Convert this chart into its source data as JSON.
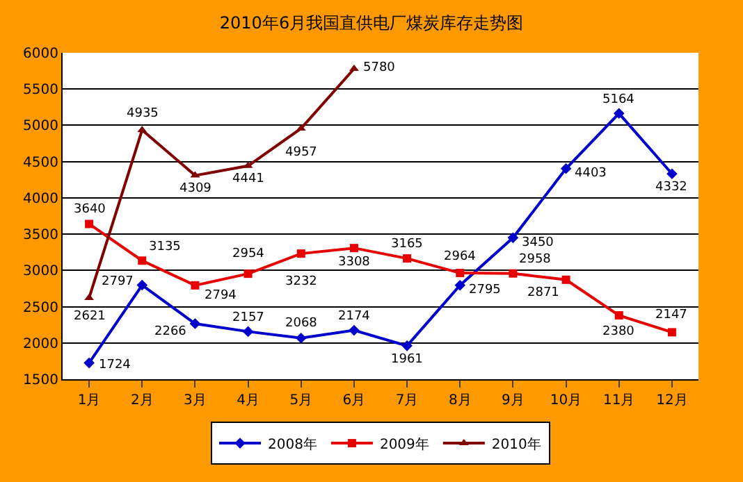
{
  "chart_data": {
    "type": "line",
    "title": "2010年6月我国直供电厂煤炭库存走势图",
    "categories": [
      "1月",
      "2月",
      "3月",
      "4月",
      "5月",
      "6月",
      "7月",
      "8月",
      "9月",
      "10月",
      "11月",
      "12月"
    ],
    "series": [
      {
        "name": "2008年",
        "color": "#0000cc",
        "marker": "diamond",
        "values": [
          1724,
          2797,
          2266,
          2157,
          2068,
          2174,
          1961,
          2795,
          3450,
          4403,
          5164,
          4332
        ]
      },
      {
        "name": "2009年",
        "color": "#e60000",
        "marker": "square",
        "values": [
          3640,
          3135,
          2794,
          2954,
          3232,
          3308,
          3165,
          2964,
          2958,
          2871,
          2380,
          2147
        ]
      },
      {
        "name": "2010年",
        "color": "#800000",
        "marker": "triangle",
        "values": [
          2621,
          4935,
          4309,
          4441,
          4957,
          5780,
          null,
          null,
          null,
          null,
          null,
          null
        ]
      }
    ],
    "ylim": [
      1500,
      6000
    ],
    "yticks": [
      1500,
      2000,
      2500,
      3000,
      3500,
      4000,
      4500,
      5000,
      5500,
      6000
    ],
    "grid": "y",
    "legend": "bottom",
    "data_labels": true,
    "line_style": "solid"
  }
}
